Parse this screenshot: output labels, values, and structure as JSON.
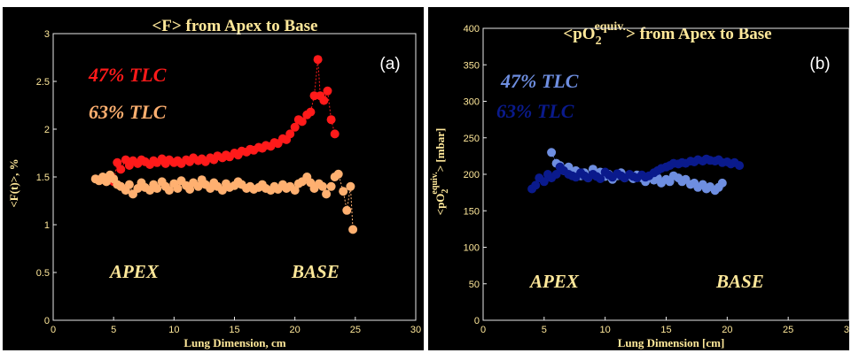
{
  "chart_data": [
    {
      "type": "scatter",
      "title_main": "<F> from Apex to Base",
      "xlabel": "Lung Dimension, cm",
      "ylabel": "<F(t)>, %",
      "panel_label": "(a)",
      "xlim": [
        0,
        30
      ],
      "ylim": [
        0,
        3
      ],
      "xticks": [
        "0",
        "5",
        "10",
        "15",
        "20",
        "25",
        "30"
      ],
      "yticks": [
        "0",
        "0.5",
        "1",
        "1.5",
        "2",
        "2.5",
        "3"
      ],
      "regions": [
        "APEX",
        "BASE"
      ],
      "series": [
        {
          "name": "47% TLC",
          "color": "#ff1a1a",
          "x": [
            5.0,
            5.3,
            5.6,
            6.0,
            6.3,
            6.6,
            7.0,
            7.3,
            7.6,
            8.0,
            8.3,
            8.6,
            9.0,
            9.3,
            9.6,
            10.0,
            10.3,
            10.6,
            11.0,
            11.3,
            11.6,
            12.0,
            12.3,
            12.6,
            13.0,
            13.3,
            13.6,
            14.0,
            14.3,
            14.6,
            15.0,
            15.3,
            15.6,
            16.0,
            16.3,
            16.6,
            17.0,
            17.3,
            17.6,
            18.0,
            18.3,
            18.6,
            19.0,
            19.3,
            19.6,
            20.0,
            20.3,
            20.6,
            21.0,
            21.3,
            21.6,
            21.9,
            22.1,
            22.4,
            22.7,
            23.0,
            23.3
          ],
          "y": [
            1.45,
            1.65,
            1.58,
            1.68,
            1.62,
            1.67,
            1.64,
            1.68,
            1.66,
            1.63,
            1.67,
            1.65,
            1.69,
            1.64,
            1.68,
            1.65,
            1.67,
            1.64,
            1.68,
            1.66,
            1.7,
            1.67,
            1.69,
            1.66,
            1.7,
            1.68,
            1.72,
            1.7,
            1.73,
            1.71,
            1.75,
            1.73,
            1.77,
            1.76,
            1.79,
            1.78,
            1.81,
            1.8,
            1.83,
            1.82,
            1.86,
            1.85,
            1.9,
            1.89,
            1.95,
            2.02,
            2.1,
            2.08,
            2.15,
            2.18,
            2.35,
            2.73,
            2.35,
            2.3,
            2.4,
            2.1,
            1.95
          ]
        },
        {
          "name": "63% TLC",
          "color": "#ffb070",
          "x": [
            3.5,
            3.8,
            4.1,
            4.4,
            4.7,
            5.0,
            5.3,
            5.6,
            6.0,
            6.3,
            6.6,
            7.0,
            7.3,
            7.6,
            8.0,
            8.3,
            8.6,
            9.0,
            9.3,
            9.6,
            10.0,
            10.3,
            10.6,
            11.0,
            11.3,
            11.6,
            12.0,
            12.3,
            12.6,
            13.0,
            13.3,
            13.6,
            14.0,
            14.3,
            14.6,
            15.0,
            15.3,
            15.6,
            16.0,
            16.3,
            16.6,
            17.0,
            17.3,
            17.6,
            18.0,
            18.3,
            18.6,
            19.0,
            19.3,
            19.6,
            20.0,
            20.3,
            20.6,
            21.0,
            21.3,
            21.6,
            22.0,
            22.3,
            22.6,
            23.0,
            23.3,
            23.6,
            24.0,
            24.3,
            24.6,
            24.8
          ],
          "y": [
            1.48,
            1.46,
            1.5,
            1.45,
            1.52,
            1.48,
            1.42,
            1.4,
            1.36,
            1.42,
            1.32,
            1.38,
            1.44,
            1.39,
            1.36,
            1.42,
            1.38,
            1.45,
            1.4,
            1.36,
            1.43,
            1.38,
            1.46,
            1.41,
            1.37,
            1.44,
            1.4,
            1.47,
            1.42,
            1.38,
            1.44,
            1.4,
            1.36,
            1.43,
            1.39,
            1.41,
            1.45,
            1.42,
            1.38,
            1.4,
            1.37,
            1.39,
            1.42,
            1.38,
            1.36,
            1.4,
            1.37,
            1.42,
            1.38,
            1.4,
            1.36,
            1.43,
            1.45,
            1.5,
            1.44,
            1.38,
            1.43,
            1.4,
            1.32,
            1.4,
            1.5,
            1.53,
            1.35,
            1.15,
            1.4,
            0.95
          ]
        }
      ]
    },
    {
      "type": "scatter",
      "title_pre": "<pO",
      "title_sub": "2",
      "title_sup": "equiv.",
      "title_post": "> from Apex to Base",
      "xlabel": "Lung Dimension [cm]",
      "ylabel_pre": "<pO",
      "ylabel_sub": "2",
      "ylabel_sup": "equiv.",
      "ylabel_post": "> [mbar]",
      "panel_label": "(b)",
      "xlim": [
        0,
        30
      ],
      "ylim": [
        0,
        400
      ],
      "xticks": [
        "0",
        "5",
        "10",
        "15",
        "20",
        "25",
        "30"
      ],
      "yticks": [
        "0",
        "50",
        "100",
        "150",
        "200",
        "250",
        "300",
        "350",
        "400"
      ],
      "regions": [
        "APEX",
        "BASE"
      ],
      "series": [
        {
          "name": "47% TLC",
          "color": "#6e8ee0",
          "x": [
            5.6,
            6.0,
            6.3,
            6.6,
            7.0,
            7.3,
            7.6,
            8.0,
            8.3,
            8.6,
            9.0,
            9.3,
            9.6,
            10.0,
            10.3,
            10.6,
            11.0,
            11.3,
            11.6,
            12.0,
            12.3,
            12.6,
            13.0,
            13.3,
            13.6,
            14.0,
            14.3,
            14.6,
            15.0,
            15.3,
            15.6,
            16.0,
            16.3,
            16.6,
            17.0,
            17.3,
            17.6,
            18.0,
            18.3,
            18.6,
            19.0,
            19.3,
            19.6
          ],
          "y": [
            230,
            215,
            212,
            205,
            210,
            200,
            205,
            198,
            202,
            195,
            207,
            200,
            203,
            197,
            200,
            193,
            198,
            202,
            195,
            198,
            194,
            199,
            195,
            190,
            197,
            192,
            195,
            188,
            193,
            190,
            198,
            195,
            190,
            193,
            186,
            188,
            182,
            186,
            180,
            183,
            178,
            182,
            188
          ]
        },
        {
          "name": "63% TLC",
          "color": "#0a1a8c",
          "x": [
            4.0,
            4.3,
            4.6,
            5.0,
            5.3,
            5.6,
            6.0,
            6.3,
            6.6,
            7.0,
            7.3,
            7.6,
            8.0,
            8.3,
            8.6,
            9.0,
            9.3,
            9.6,
            10.0,
            10.3,
            10.6,
            11.0,
            11.3,
            11.6,
            12.0,
            12.3,
            12.6,
            13.0,
            13.3,
            13.6,
            14.0,
            14.3,
            14.6,
            15.0,
            15.3,
            15.6,
            16.0,
            16.3,
            16.6,
            17.0,
            17.3,
            17.6,
            18.0,
            18.3,
            18.6,
            19.0,
            19.3,
            19.6,
            20.0,
            20.3,
            20.6,
            21.0
          ],
          "y": [
            180,
            185,
            195,
            190,
            200,
            195,
            200,
            210,
            205,
            200,
            198,
            196,
            202,
            198,
            195,
            200,
            197,
            194,
            203,
            199,
            196,
            201,
            198,
            195,
            200,
            197,
            195,
            199,
            196,
            198,
            202,
            205,
            208,
            210,
            212,
            215,
            214,
            216,
            215,
            218,
            217,
            220,
            218,
            221,
            219,
            218,
            220,
            216,
            217,
            214,
            216,
            212
          ]
        }
      ]
    }
  ]
}
